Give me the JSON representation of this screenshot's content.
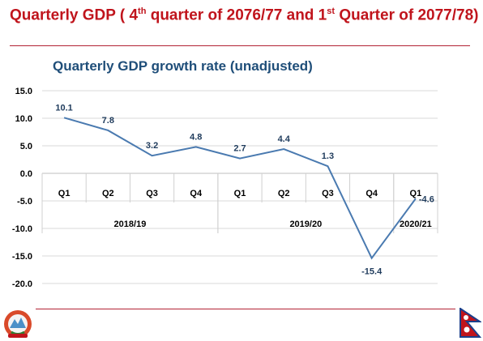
{
  "slide": {
    "title_part1": "Quarterly GDP ( 4",
    "title_sup1": "th",
    "title_part2": " quarter of 2076/77 and 1",
    "title_sup2": "st",
    "title_part3": " Quarter of 2077/78)"
  },
  "colors": {
    "title": "#c0141c",
    "chart_title": "#1f4e79",
    "line": "#4a7ab0",
    "data_label": "#1f3b5c",
    "grid": "#d9d9d9",
    "rule": "#b22234"
  },
  "icons": {
    "emblem": "nepal-emblem-icon",
    "flag": "nepal-flag-icon"
  },
  "chart_data": {
    "type": "line",
    "title": "Quarterly GDP growth rate (unadjusted)",
    "xlabel": "",
    "ylabel": "",
    "ylim": [
      -20,
      15
    ],
    "yticks": [
      "15.0",
      "10.0",
      "5.0",
      "0.0",
      "-5.0",
      "-10.0",
      "-15.0",
      "-20.0"
    ],
    "grid": true,
    "categories": [
      "Q1",
      "Q2",
      "Q3",
      "Q4",
      "Q1",
      "Q2",
      "Q3",
      "Q4",
      "Q1"
    ],
    "groups": [
      {
        "label": "2018/19",
        "count": 4
      },
      {
        "label": "2019/20",
        "count": 4
      },
      {
        "label": "2020/21",
        "count": 1
      }
    ],
    "values": [
      10.1,
      7.8,
      3.2,
      4.8,
      2.7,
      4.4,
      1.3,
      -15.4,
      -4.6
    ],
    "data_labels": [
      "10.1",
      "7.8",
      "3.2",
      "4.8",
      "2.7",
      "4.4",
      "1.3",
      "-15.4",
      "-4.6"
    ]
  }
}
